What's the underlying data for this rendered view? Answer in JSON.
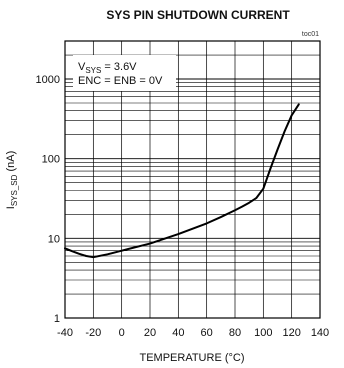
{
  "chart_data": {
    "type": "line",
    "title": "SYS PIN SHUTDOWN CURRENT",
    "tag": "toc01",
    "xlabel": "TEMPERATURE (°C)",
    "ylabel_main": "I",
    "ylabel_sub": "SYS_SD",
    "ylabel_unit": " (nA)",
    "xscale": "linear",
    "yscale": "log",
    "xlim": [
      -40,
      140
    ],
    "ylim": [
      1,
      3000
    ],
    "xticks": [
      -40,
      -20,
      0,
      20,
      40,
      60,
      80,
      100,
      120,
      140
    ],
    "yticks": [
      1,
      10,
      100,
      1000
    ],
    "ytick_labels": [
      "1",
      "10",
      "100",
      "1000"
    ],
    "grid": true,
    "annotations": {
      "line1_main": "V",
      "line1_sub": "SYS",
      "line1_rest": " = 3.6V",
      "line2": "ENC = ENB = 0V"
    },
    "series": [
      {
        "x": [
          -40,
          -35,
          -30,
          -25,
          -20,
          -10,
          0,
          20,
          40,
          60,
          70,
          80,
          85,
          90,
          95,
          100,
          105,
          110,
          115,
          120,
          125
        ],
        "y": [
          7.5,
          6.9,
          6.4,
          6.0,
          5.8,
          6.3,
          7.0,
          8.6,
          11.3,
          15.4,
          18.5,
          22.5,
          25,
          28,
          32,
          42,
          75,
          130,
          220,
          350,
          480
        ]
      }
    ]
  }
}
